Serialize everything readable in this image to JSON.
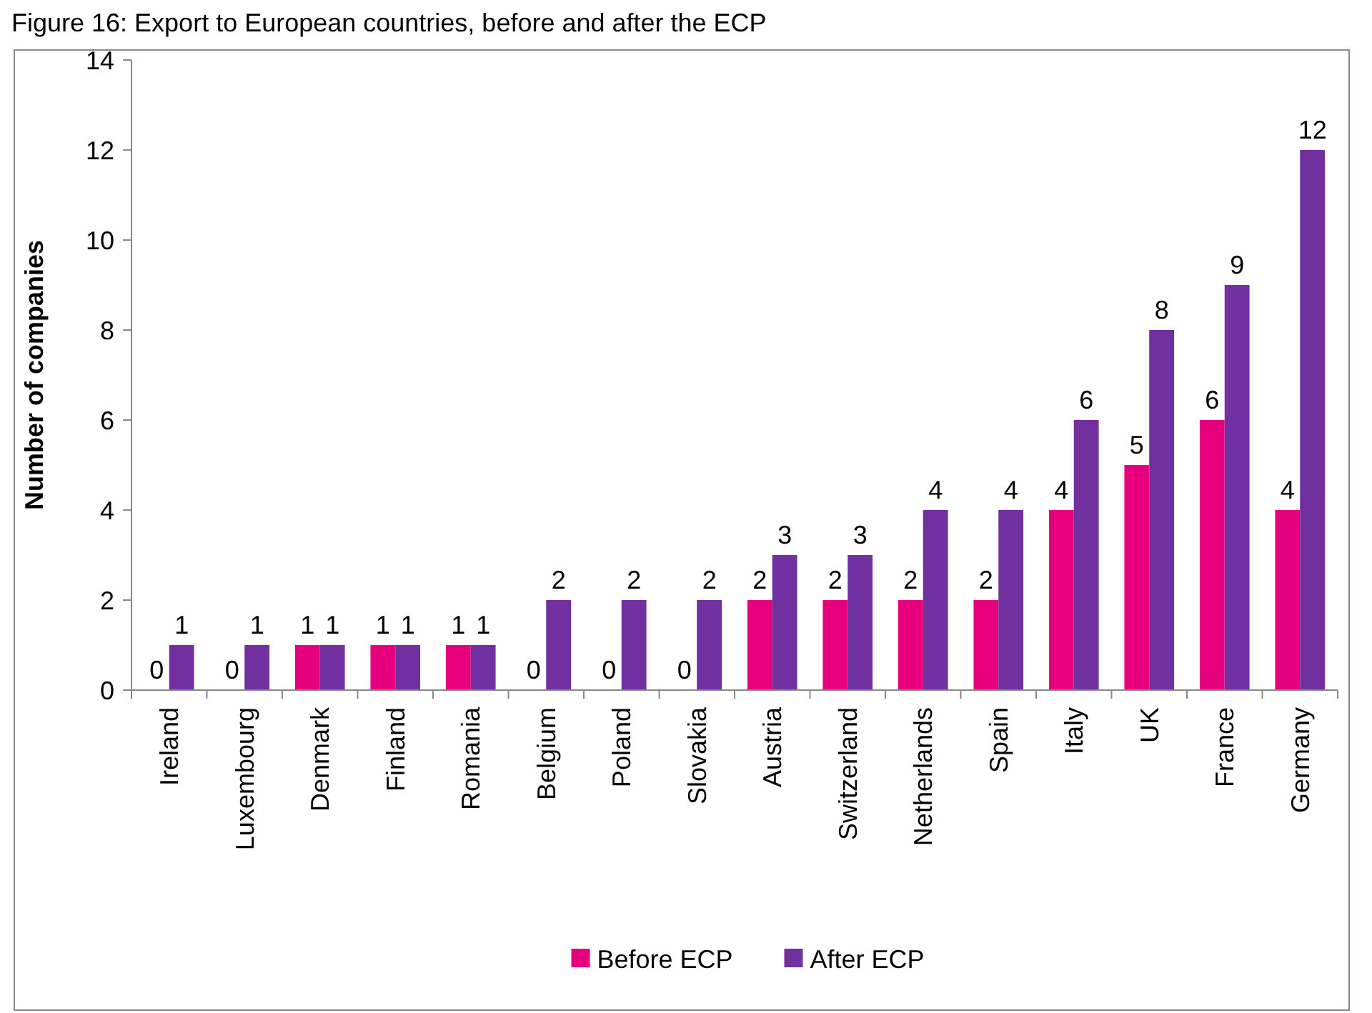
{
  "chart_data": {
    "type": "bar",
    "title": "Figure 16: Export to European countries, before and after the ECP",
    "ylabel": "Number of companies",
    "categories": [
      "Ireland",
      "Luxembourg",
      "Denmark",
      "Finland",
      "Romania",
      "Belgium",
      "Poland",
      "Slovakia",
      "Austria",
      "Switzerland",
      "Netherlands",
      "Spain",
      "Italy",
      "UK",
      "France",
      "Germany"
    ],
    "series": [
      {
        "name": "Before ECP",
        "color": "#e6007e",
        "values": [
          0,
          0,
          1,
          1,
          1,
          0,
          0,
          0,
          2,
          2,
          2,
          2,
          4,
          5,
          6,
          4
        ]
      },
      {
        "name": "After ECP",
        "color": "#7030a0",
        "values": [
          1,
          1,
          1,
          1,
          1,
          2,
          2,
          2,
          3,
          3,
          4,
          4,
          6,
          8,
          9,
          12
        ]
      }
    ],
    "ylim": [
      0,
      14
    ],
    "yticks": [
      0,
      2,
      4,
      6,
      8,
      10,
      12,
      14
    ],
    "data_labels": true,
    "legend": "bottom",
    "grid": false
  }
}
